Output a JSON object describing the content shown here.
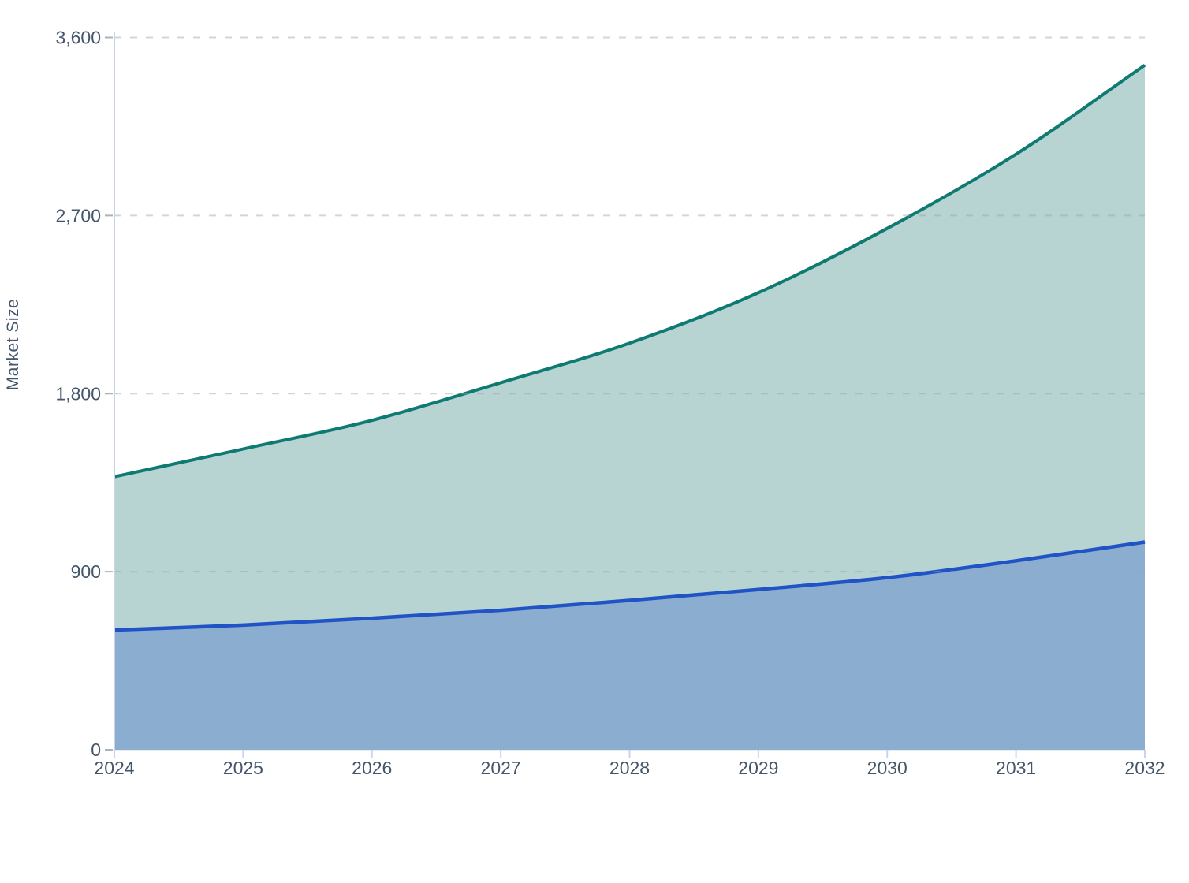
{
  "chart_data": {
    "type": "area",
    "title": "",
    "ylabel": "Market Size",
    "xlabel": "",
    "categories": [
      "2024",
      "2025",
      "2026",
      "2027",
      "2028",
      "2029",
      "2030",
      "2031",
      "2032"
    ],
    "series": [
      {
        "name": "teal",
        "values": [
          1380,
          1520,
          1665,
          1855,
          2055,
          2310,
          2635,
          3010,
          3460
        ],
        "line_color": "#0f7a72",
        "fill_color": "#b7d4d2"
      },
      {
        "name": "blue",
        "values": [
          605,
          630,
          665,
          705,
          755,
          810,
          870,
          955,
          1050
        ],
        "line_color": "#2053c5",
        "fill_color": "#8badcf"
      }
    ],
    "ylim": [
      0,
      3600
    ],
    "yticks": [
      0,
      900,
      1800,
      2700,
      3600
    ],
    "ytick_labels": [
      "0",
      "900",
      "1,800",
      "2,700",
      "3,600"
    ],
    "grid": "horizontal-dashed",
    "legend": "none",
    "layout_hints": {
      "curve": "smooth-monotone",
      "area_fill": "to-zero, blue series drawn over teal",
      "gridlines_above_areas": true
    }
  },
  "style": {
    "background": "#ffffff",
    "text_color": "#45566b",
    "grid_color": "#99a4ad",
    "axis_line_color": "#c9d2f3",
    "baseline_color": "#e9ebee",
    "y_tick_color": "#aab3bc",
    "tick_label_font_size": 23
  }
}
